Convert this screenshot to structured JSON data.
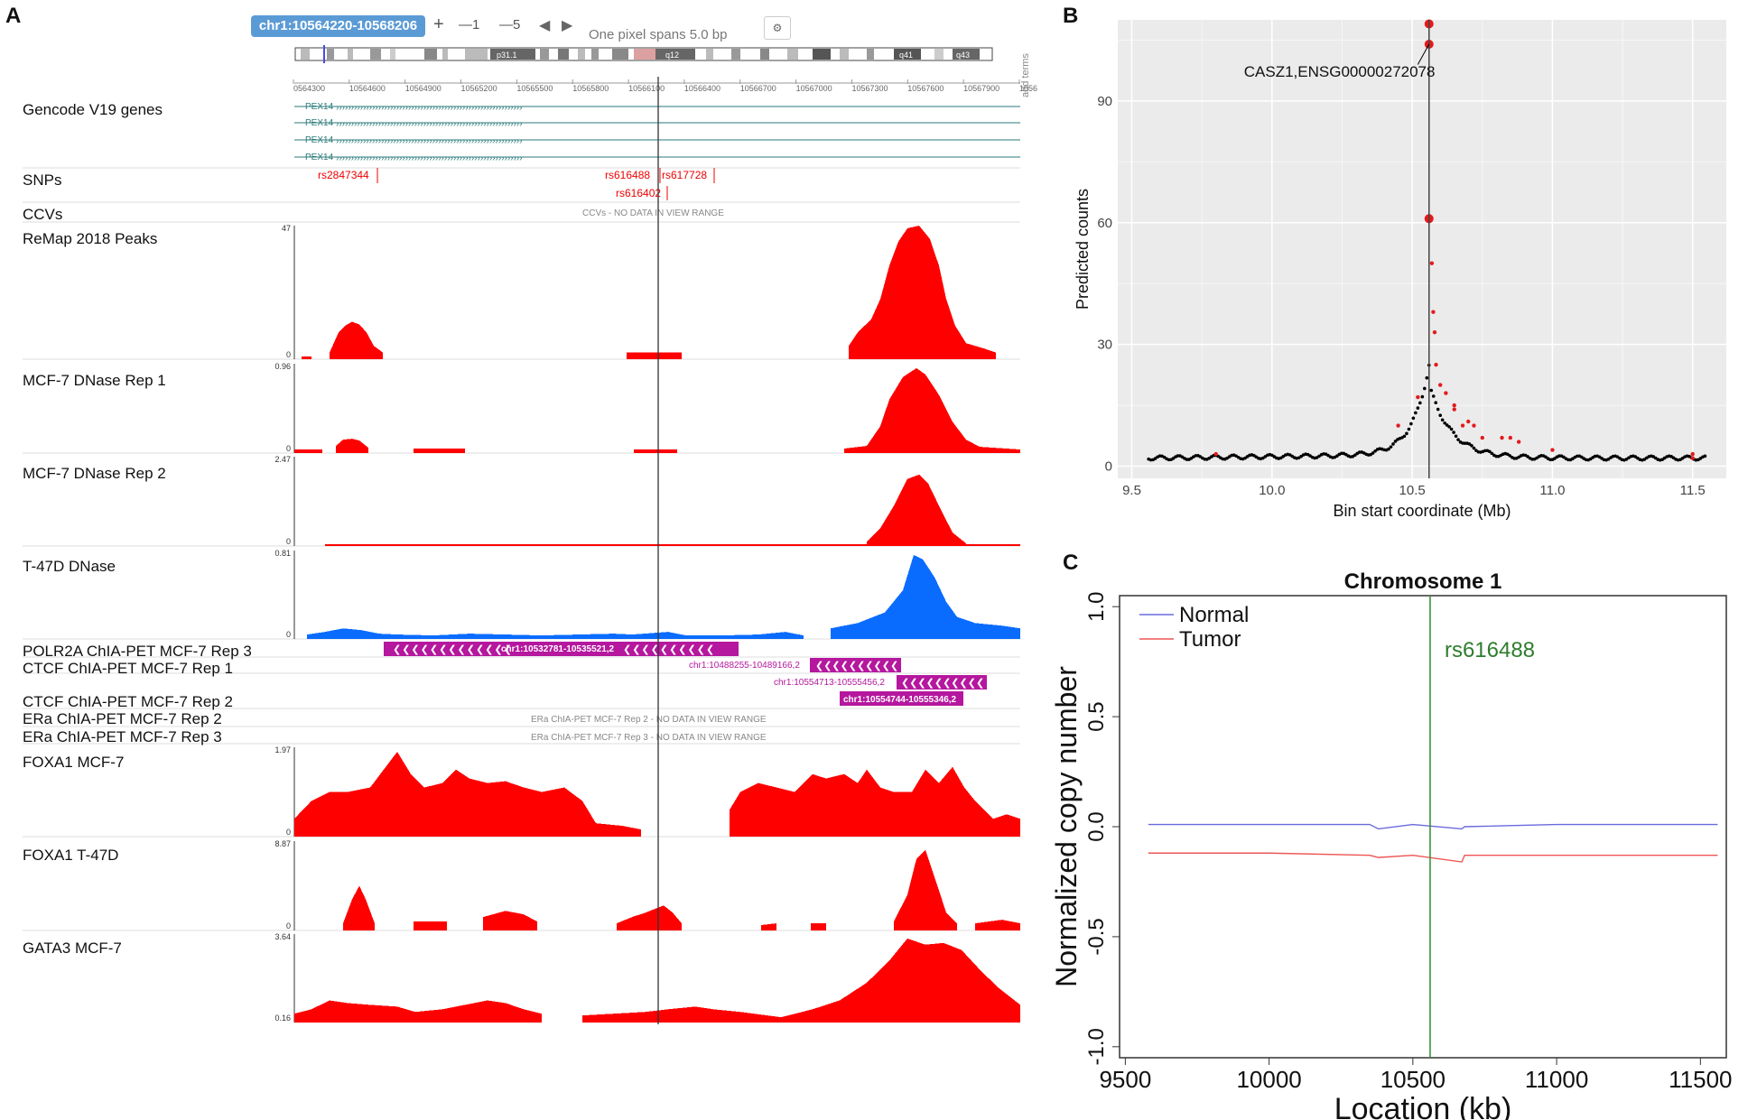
{
  "panel_a": {
    "label": "A",
    "toolbar": {
      "locus": "chr1:10564220-10568206",
      "zoom_in": "+",
      "zoom_out_1": "—1",
      "zoom_out_5": "—5",
      "back": "◀",
      "forward": "▶",
      "pixel_span": "One pixel spans 5.0 bp",
      "settings": "⚙",
      "add_terms": "add terms"
    },
    "ideogram_bands": [
      "p31.1",
      "q12",
      "q41",
      "q43"
    ],
    "ruler_ticks": [
      "0564300",
      "10564600",
      "10564900",
      "10565200",
      "10565500",
      "10565800",
      "10566100",
      "10566400",
      "10566700",
      "10567000",
      "10567300",
      "10567600",
      "10567900",
      "1056"
    ],
    "gene_labels": [
      "PEX14",
      "PEX14",
      "PEX14",
      "PEX14"
    ],
    "snps": [
      "rs2847344",
      "rs616488",
      "rs617728",
      "rs616402"
    ],
    "no_data": {
      "ccvs": "CCVs - NO DATA IN VIEW RANGE",
      "era2": "ERa ChIA-PET MCF-7 Rep 2 - NO DATA IN VIEW RANGE",
      "era3": "ERa ChIA-PET MCF-7 Rep 3 - NO DATA IN VIEW RANGE"
    },
    "chiapet_labels": {
      "polr2a": "chr1:10532781-10535521,2",
      "ctcf1a": "chr1:10488255-10489166,2",
      "ctcf1b": "chr1:10554713-10555456,2",
      "ctcf2": "chr1:10554744-10555346,2"
    },
    "tracks": [
      {
        "name": "Gencode V19 genes"
      },
      {
        "name": "SNPs"
      },
      {
        "name": "CCVs"
      },
      {
        "name": "ReMap 2018 Peaks",
        "max": "47",
        "min": "0"
      },
      {
        "name": "MCF-7 DNase Rep 1",
        "max": "0.96",
        "min": "0"
      },
      {
        "name": "MCF-7 DNase Rep 2",
        "max": "2.47",
        "min": "0"
      },
      {
        "name": "T-47D DNase",
        "max": "0.81",
        "min": "0"
      },
      {
        "name": "POLR2A ChIA-PET MCF-7 Rep 3"
      },
      {
        "name": "CTCF ChIA-PET MCF-7 Rep 1"
      },
      {
        "name": "CTCF ChIA-PET MCF-7 Rep 2"
      },
      {
        "name": "ERa ChIA-PET MCF-7 Rep 2"
      },
      {
        "name": "ERa ChIA-PET MCF-7 Rep 3"
      },
      {
        "name": "FOXA1 MCF-7",
        "max": "1.97",
        "min": "0"
      },
      {
        "name": "FOXA1 T-47D",
        "max": "8.87",
        "min": "0"
      },
      {
        "name": "GATA3 MCF-7",
        "max": "3.64",
        "min": "0.16"
      }
    ],
    "colors": {
      "signal": "#ff0000",
      "blue_signal": "#0a6cff",
      "chiapet": "#b5179e",
      "gene": "#2a7a7a",
      "locus_bg": "#5b9bd5"
    }
  },
  "panel_b": {
    "label": "B",
    "annotation": "CASZ1,ENSG00000272078",
    "xlabel": "Bin start coordinate (Mb)",
    "ylabel": "Predicted counts",
    "xticks": [
      "9.5",
      "10.0",
      "10.5",
      "11.0",
      "11.5"
    ],
    "yticks": [
      "0",
      "30",
      "60",
      "90"
    ]
  },
  "panel_c": {
    "label": "C",
    "title": "Chromosome 1",
    "xlabel": "Location (kb)",
    "ylabel": "Normalized copy number",
    "legend": [
      "Normal",
      "Tumor"
    ],
    "snp_label": "rs616488",
    "xticks": [
      "9500",
      "10000",
      "10500",
      "11000",
      "11500"
    ],
    "yticks": [
      "-1.0",
      "-0.5",
      "0.0",
      "0.5",
      "1.0"
    ]
  },
  "chart_data": [
    {
      "type": "scatter",
      "title": "",
      "xlabel": "Bin start coordinate (Mb)",
      "ylabel": "Predicted counts",
      "xlim": [
        9.45,
        11.62
      ],
      "ylim": [
        -3,
        110
      ],
      "vline": 10.56,
      "annotation": "CASZ1,ENSG00000272078",
      "series": [
        {
          "name": "background",
          "color": "#000000",
          "x": [
            9.56,
            9.65,
            9.75,
            9.85,
            9.95,
            10.05,
            10.15,
            10.25,
            10.35,
            10.42,
            10.47,
            10.5,
            10.52,
            10.54,
            10.6,
            10.62,
            10.65,
            10.7,
            10.8,
            10.9,
            11.0,
            11.1,
            11.2,
            11.3,
            11.4,
            11.5,
            11.55
          ],
          "y": [
            2,
            2.5,
            2.5,
            3,
            3,
            3.5,
            3.5,
            4,
            5,
            7,
            10,
            13,
            17,
            28,
            22,
            14,
            10,
            7,
            5,
            4,
            3.5,
            3,
            3,
            2.5,
            2.5,
            2,
            2
          ]
        },
        {
          "name": "highlighted",
          "color": "#e41a1c",
          "x": [
            10.56,
            10.56,
            10.56,
            10.57,
            10.575,
            10.58,
            10.585,
            10.6,
            10.65,
            10.68,
            10.75,
            10.82,
            11.0,
            11.5
          ],
          "y": [
            109,
            104,
            61,
            50,
            38,
            33,
            25,
            20,
            15,
            10,
            7,
            7,
            4,
            2
          ]
        }
      ]
    },
    {
      "type": "line",
      "title": "Chromosome 1",
      "xlabel": "Location (kb)",
      "ylabel": "Normalized copy number",
      "xlim": [
        9480,
        11590
      ],
      "ylim": [
        -1.05,
        1.05
      ],
      "vline": 10560,
      "vline_label": "rs616488",
      "series": [
        {
          "name": "Normal",
          "color": "#6a6adf",
          "x": [
            9580,
            10000,
            10350,
            10380,
            10500,
            10670,
            10680,
            11000,
            11560
          ],
          "y": [
            0.01,
            0.01,
            0.01,
            -0.01,
            0.01,
            -0.01,
            0.0,
            0.01,
            0.01
          ]
        },
        {
          "name": "Tumor",
          "color": "#ee5555",
          "x": [
            9580,
            10000,
            10350,
            10380,
            10500,
            10670,
            10680,
            11000,
            11560
          ],
          "y": [
            -0.12,
            -0.12,
            -0.13,
            -0.14,
            -0.13,
            -0.16,
            -0.13,
            -0.13,
            -0.13
          ]
        }
      ]
    }
  ]
}
